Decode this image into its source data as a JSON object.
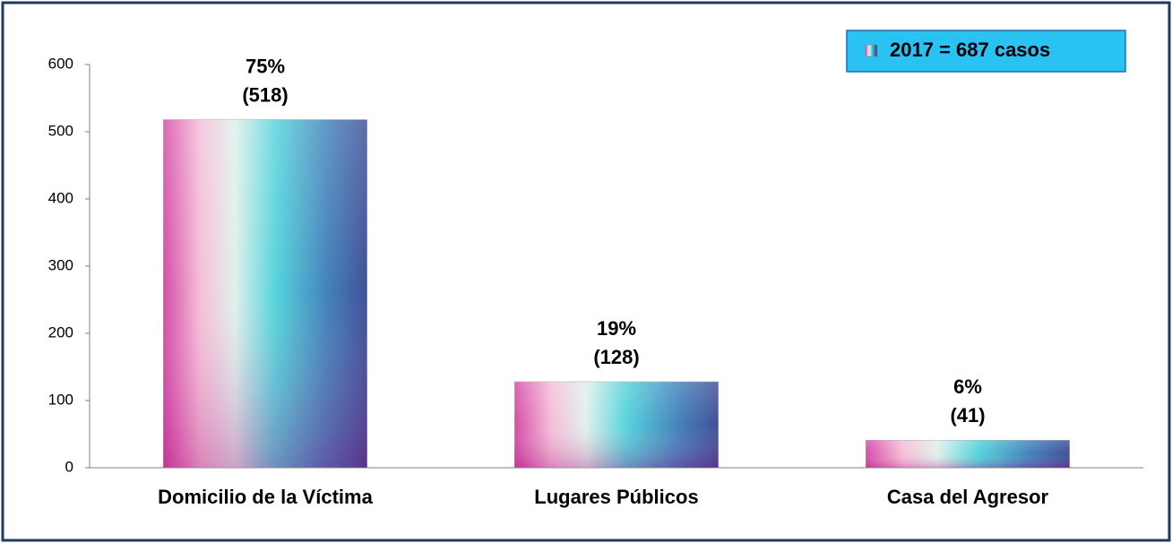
{
  "chart_data": {
    "type": "bar",
    "categories": [
      "Domicilio de la Víctima",
      "Lugares Públicos",
      "Casa del Agresor"
    ],
    "series": [
      {
        "name": "2017 = 687 casos",
        "color": "#2e6fb0",
        "values": [
          518,
          128,
          41
        ]
      }
    ],
    "percent_labels": [
      "75%",
      "19%",
      "6%"
    ],
    "value_labels": [
      "(518)",
      "(128)",
      "(41)"
    ],
    "ylim": [
      0,
      600
    ],
    "yticks": [
      0,
      100,
      200,
      300,
      400,
      500,
      600
    ],
    "grid": false,
    "legend": "top-right"
  }
}
